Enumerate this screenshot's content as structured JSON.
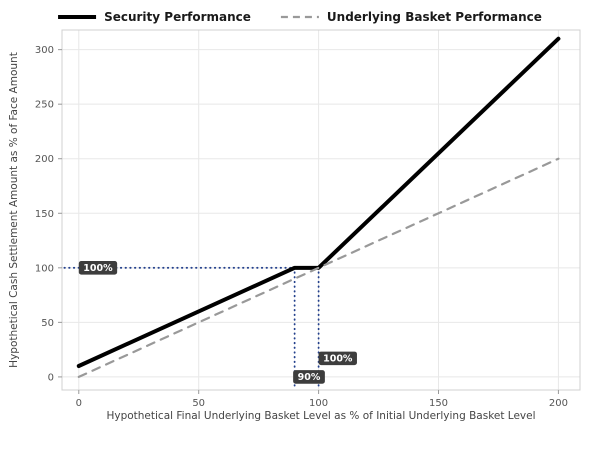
{
  "chart_data": {
    "type": "line",
    "title": "",
    "xlabel": "Hypothetical Final Underlying Basket Level as % of Initial Underlying Basket Level",
    "ylabel": "Hypothetical Cash Settlement Amount as % of Face Amount",
    "xlim": [
      -7,
      209
    ],
    "ylim": [
      -12,
      318
    ],
    "x_ticks": [
      0,
      50,
      100,
      150,
      200
    ],
    "y_ticks": [
      0,
      50,
      100,
      150,
      200,
      250,
      300
    ],
    "grid": true,
    "legend_position": "top-center",
    "colors": {
      "security_line": "#000000",
      "basket_line": "#999999",
      "guide_line": "#23408c",
      "badge_background": "#3d3d3d",
      "badge_text": "#ffffff",
      "gridline": "#e8e8e8",
      "plot_border": "#d0d0d0",
      "plot_background": "#ffffff"
    },
    "series": [
      {
        "name": "Security Performance",
        "slug": "security-performance-line",
        "style": "solid",
        "color": "#000000",
        "width": 4,
        "points": [
          [
            0,
            10
          ],
          [
            90,
            100
          ],
          [
            100,
            100
          ],
          [
            200,
            310
          ]
        ]
      },
      {
        "name": "Underlying Basket Performance",
        "slug": "underlying-basket-performance-line",
        "style": "dashed",
        "color": "#999999",
        "width": 2.2,
        "points": [
          [
            0,
            0
          ],
          [
            200,
            200
          ]
        ]
      }
    ],
    "guides": [
      {
        "type": "h",
        "y": 100,
        "x1": -6,
        "x2": 100
      },
      {
        "type": "v",
        "x": 90,
        "y1": -8,
        "y2": 100
      },
      {
        "type": "v",
        "x": 100,
        "y1": -8,
        "y2": 100
      }
    ],
    "annotations": [
      {
        "label": "100%",
        "x": 8,
        "y": 100
      },
      {
        "label": "90%",
        "x": 96,
        "y": 0
      },
      {
        "label": "100%",
        "x": 108,
        "y": 17
      }
    ]
  },
  "legend": {
    "items": [
      {
        "label": "Security Performance",
        "style": "solid",
        "color": "#000000"
      },
      {
        "label": "Underlying Basket Performance",
        "style": "dashed",
        "color": "#999999"
      }
    ]
  }
}
